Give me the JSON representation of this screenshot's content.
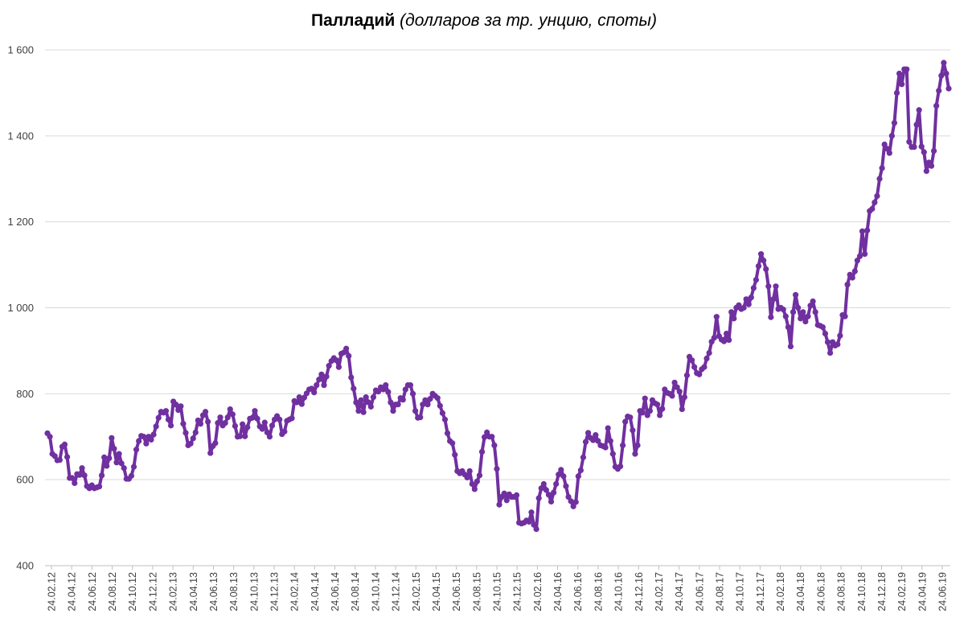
{
  "chart_data": {
    "type": "line",
    "title": "Палладий",
    "subtitle": "(долларов за тр. унцию, споты)",
    "xlabel": "",
    "ylabel": "",
    "ylim": [
      400,
      1600
    ],
    "y_ticks": [
      400,
      600,
      800,
      1000,
      1200,
      1400,
      1600
    ],
    "y_tick_labels": [
      "400",
      "600",
      "800",
      "1 000",
      "1 200",
      "1 400",
      "1 600"
    ],
    "x_tick_labels": [
      "24.02.12",
      "24.04.12",
      "24.06.12",
      "24.08.12",
      "24.10.12",
      "24.12.12",
      "24.02.13",
      "24.04.13",
      "24.06.13",
      "24.08.13",
      "24.10.13",
      "24.12.13",
      "24.02.14",
      "24.04.14",
      "24.06.14",
      "24.08.14",
      "24.10.14",
      "24.12.14",
      "24.02.15",
      "24.04.15",
      "24.06.15",
      "24.08.15",
      "24.10.15",
      "24.12.15",
      "24.02.16",
      "24.04.16",
      "24.06.16",
      "24.08.16",
      "24.10.16",
      "24.12.16",
      "24.02.17",
      "24.04.17",
      "24.06.17",
      "24.08.17",
      "24.10.17",
      "24.12.17",
      "24.02.18",
      "24.04.18",
      "24.06.18",
      "24.08.18",
      "24.10.18",
      "24.12.18",
      "24.02.19",
      "24.04.19",
      "24.06.19"
    ],
    "grid": true,
    "series_color": "#7030A0",
    "series": [
      {
        "values": [
          708,
          700,
          660,
          655,
          645,
          646,
          677,
          682,
          653,
          604,
          604,
          592,
          613,
          611,
          627,
          610,
          585,
          580,
          587,
          580,
          582,
          584,
          610,
          652,
          632,
          650,
          697,
          672,
          640,
          660,
          638,
          627,
          602,
          602,
          609,
          630,
          670,
          690,
          702,
          700,
          684,
          700,
          693,
          705,
          724,
          744,
          758,
          756,
          760,
          740,
          726,
          782,
          775,
          762,
          771,
          730,
          709,
          680,
          684,
          696,
          710,
          738,
          730,
          750,
          758,
          735,
          662,
          678,
          685,
          732,
          745,
          726,
          732,
          745,
          764,
          752,
          725,
          700,
          701,
          729,
          701,
          722,
          742,
          744,
          760,
          742,
          724,
          718,
          733,
          710,
          700,
          726,
          740,
          748,
          740,
          706,
          712,
          737,
          740,
          743,
          783,
          780,
          792,
          776,
          791,
          801,
          810,
          812,
          803,
          820,
          833,
          845,
          820,
          840,
          865,
          876,
          883,
          878,
          862,
          893,
          896,
          905,
          888,
          838,
          812,
          780,
          760,
          785,
          757,
          792,
          780,
          770,
          792,
          808,
          805,
          815,
          810,
          820,
          804,
          780,
          760,
          775,
          775,
          790,
          786,
          810,
          820,
          820,
          800,
          760,
          744,
          745,
          775,
          785,
          775,
          788,
          800,
          795,
          790,
          772,
          755,
          740,
          708,
          690,
          685,
          658,
          620,
          615,
          620,
          612,
          605,
          620,
          590,
          578,
          596,
          610,
          665,
          699,
          710,
          700,
          700,
          680,
          625,
          542,
          560,
          568,
          552,
          566,
          560,
          560,
          564,
          500,
          498,
          500,
          505,
          502,
          524,
          495,
          485,
          557,
          580,
          590,
          576,
          565,
          549,
          570,
          590,
          612,
          623,
          608,
          585,
          560,
          550,
          538,
          548,
          608,
          622,
          652,
          688,
          709,
          697,
          692,
          704,
          690,
          680,
          678,
          675,
          720,
          690,
          660,
          630,
          625,
          631,
          680,
          735,
          747,
          745,
          715,
          660,
          680,
          760,
          756,
          789,
          750,
          760,
          785,
          778,
          775,
          750,
          765,
          810,
          802,
          800,
          795,
          826,
          815,
          805,
          764,
          792,
          843,
          886,
          878,
          862,
          848,
          845,
          857,
          862,
          882,
          895,
          921,
          930,
          979,
          934,
          926,
          922,
          940,
          925,
          990,
          975,
          1000,
          1006,
          997,
          1000,
          1020,
          1008,
          1024,
          1046,
          1065,
          1097,
          1125,
          1110,
          1090,
          1050,
          978,
          1020,
          1050,
          997,
          1000,
          996,
          980,
          955,
          910,
          990,
          1030,
          1000,
          975,
          990,
          968,
          980,
          1005,
          1015,
          990,
          960,
          958,
          955,
          940,
          920,
          895,
          920,
          912,
          915,
          935,
          983,
          980,
          1054,
          1077,
          1070,
          1085,
          1110,
          1120,
          1178,
          1125,
          1180,
          1225,
          1230,
          1245,
          1260,
          1300,
          1325,
          1380,
          1370,
          1360,
          1400,
          1430,
          1500,
          1545,
          1520,
          1555,
          1555,
          1386,
          1374,
          1374,
          1426,
          1460,
          1375,
          1362,
          1318,
          1338,
          1330,
          1365,
          1470,
          1505,
          1540,
          1570,
          1545,
          1510
        ]
      }
    ]
  }
}
